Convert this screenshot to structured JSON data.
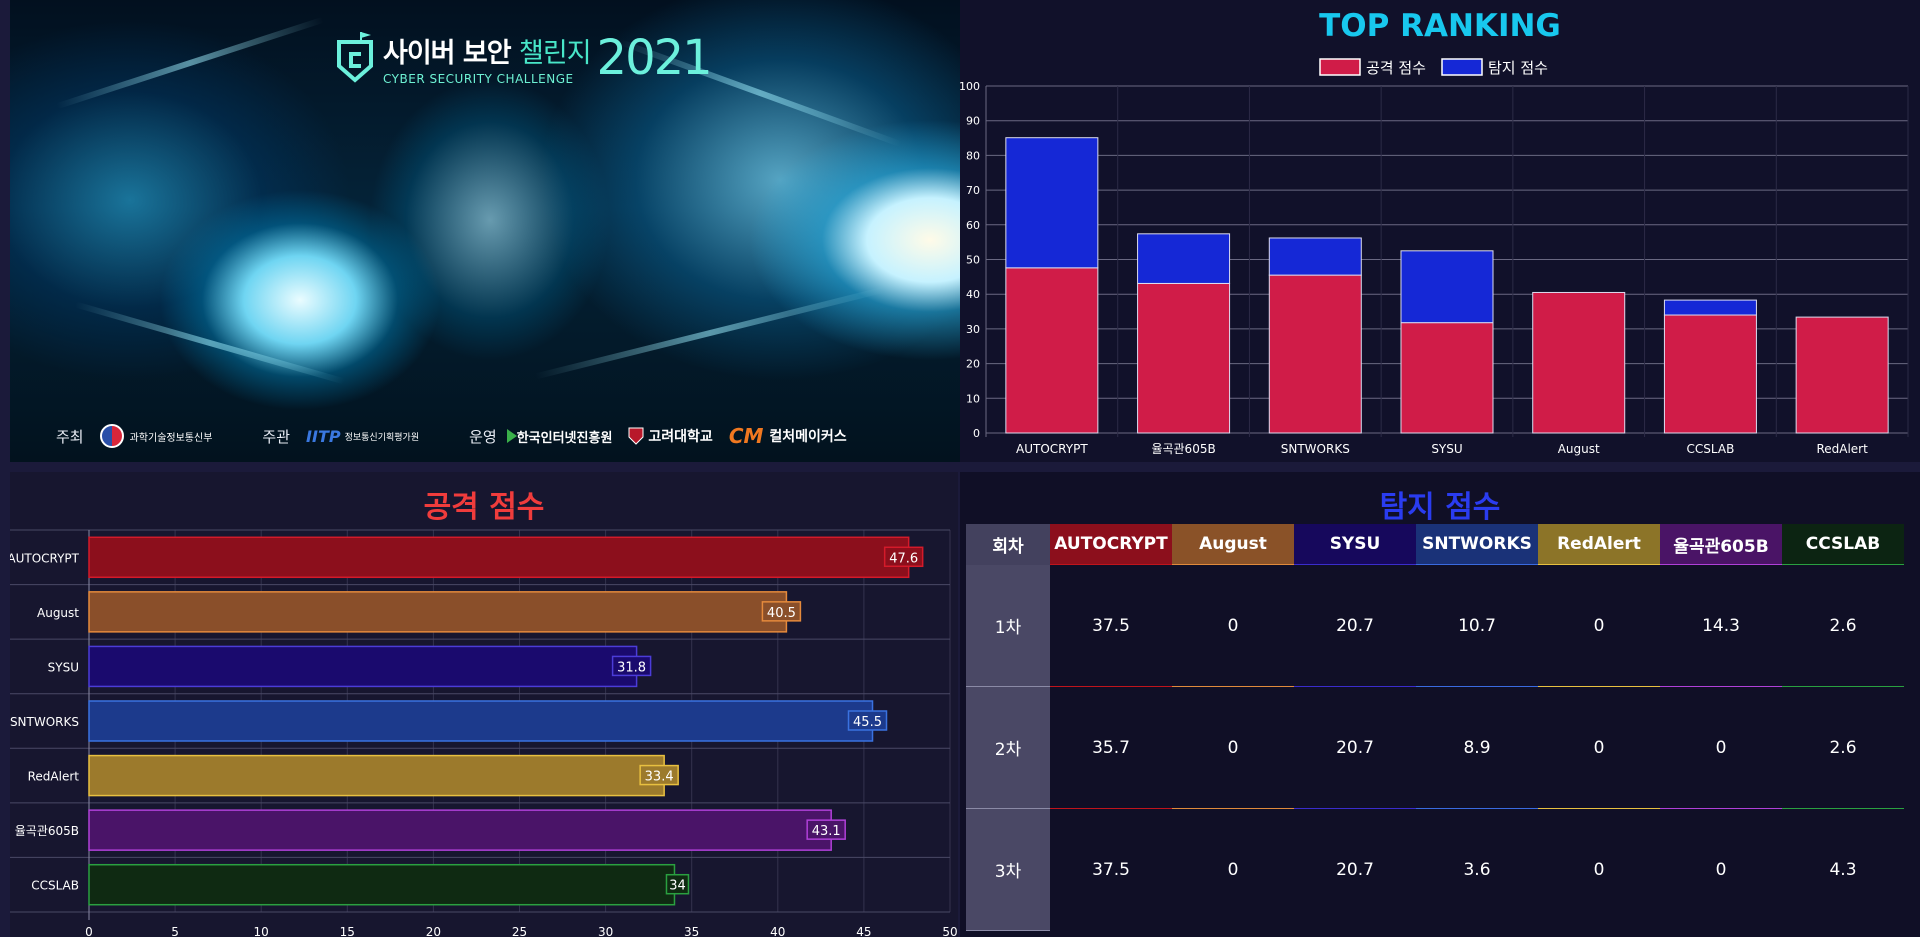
{
  "hero": {
    "title_main": "사이버 보안",
    "title_accent": "챌린지",
    "subtitle": "CYBER SECURITY CHALLENGE",
    "year": "2021",
    "sponsors": [
      {
        "label": "주최",
        "org": "과학기술정보통신부"
      },
      {
        "label": "주관",
        "org": "정보통신기획평가원",
        "logo_text": "IITP"
      },
      {
        "label": "운영",
        "org": "한국인터넷진흥원"
      },
      {
        "label": "",
        "org": "고려대학교"
      },
      {
        "label": "",
        "org": "컬처메이커스",
        "logo_text": "CM"
      }
    ]
  },
  "top_ranking": {
    "title": "TOP RANKING",
    "title_color": "#18c8ee",
    "legend": [
      {
        "name": "공격 점수",
        "color": "#d01c48"
      },
      {
        "name": "탐지 점수",
        "color": "#1528d6"
      }
    ]
  },
  "chart_data": [
    {
      "type": "bar",
      "stacked": true,
      "title": "TOP RANKING",
      "categories": [
        "AUTOCRYPT",
        "율곡관605B",
        "SNTWORKS",
        "SYSU",
        "August",
        "CCSLAB",
        "RedAlert"
      ],
      "series": [
        {
          "name": "공격 점수",
          "color": "#d01c48",
          "values": [
            47.6,
            43.1,
            45.5,
            31.8,
            40.5,
            34,
            33.4
          ]
        },
        {
          "name": "탐지 점수",
          "color": "#1528d6",
          "values": [
            37.5,
            14.3,
            10.7,
            20.7,
            0,
            4.3,
            0
          ]
        }
      ],
      "ylim": [
        0,
        100
      ],
      "yticks": [
        0,
        10,
        20,
        30,
        40,
        50,
        60,
        70,
        80,
        90,
        100
      ],
      "grid": true,
      "legend": "top-center"
    },
    {
      "type": "bar",
      "orientation": "horizontal",
      "title": "공격 점수",
      "categories": [
        "AUTOCRYPT",
        "August",
        "SYSU",
        "SNTWORKS",
        "RedAlert",
        "율곡관605B",
        "CCSLAB"
      ],
      "values": [
        47.6,
        40.5,
        31.8,
        45.5,
        33.4,
        43.1,
        34
      ],
      "labels": [
        "47.6",
        "40.5",
        "31.8",
        "45.5",
        "33.4",
        "43.1",
        "34"
      ],
      "colors": [
        "#8c0f1c",
        "#8a4f2a",
        "#1a0a6e",
        "#1c3a8c",
        "#9c7a2c",
        "#4a1468",
        "#0f2a12"
      ],
      "border_colors": [
        "#d41a2a",
        "#e58a3c",
        "#4b3cd8",
        "#3a72e0",
        "#e8c040",
        "#b040d8",
        "#2aa040"
      ],
      "xlim": [
        0,
        50
      ],
      "xticks": [
        0,
        5,
        10,
        15,
        20,
        25,
        30,
        35,
        40,
        45,
        50
      ],
      "grid": true
    }
  ],
  "attack": {
    "title": "공격 점수",
    "title_color": "#f03c3c"
  },
  "detect": {
    "title": "탐지 점수",
    "title_color": "#2a3cf0",
    "round_header": "회차",
    "teams": [
      {
        "name": "AUTOCRYPT",
        "color": "#8c0f1c",
        "accent": "#c0141c"
      },
      {
        "name": "August",
        "color": "#8a5228",
        "accent": "#e08a3c"
      },
      {
        "name": "SYSU",
        "color": "#16085c",
        "accent": "#3a2ccc"
      },
      {
        "name": "SNTWORKS",
        "color": "#1a3278",
        "accent": "#3a6ae0"
      },
      {
        "name": "RedAlert",
        "color": "#8c7428",
        "accent": "#e8c040"
      },
      {
        "name": "율곡관605B",
        "color": "#4a1466",
        "accent": "#b040d8"
      },
      {
        "name": "CCSLAB",
        "color": "#0c2412",
        "accent": "#2aa040"
      }
    ],
    "rows": [
      {
        "round": "1차",
        "values": [
          "37.5",
          "0",
          "20.7",
          "10.7",
          "0",
          "14.3",
          "2.6"
        ]
      },
      {
        "round": "2차",
        "values": [
          "35.7",
          "0",
          "20.7",
          "8.9",
          "0",
          "0",
          "2.6"
        ]
      },
      {
        "round": "3차",
        "values": [
          "37.5",
          "0",
          "20.7",
          "3.6",
          "0",
          "0",
          "4.3"
        ]
      }
    ]
  }
}
